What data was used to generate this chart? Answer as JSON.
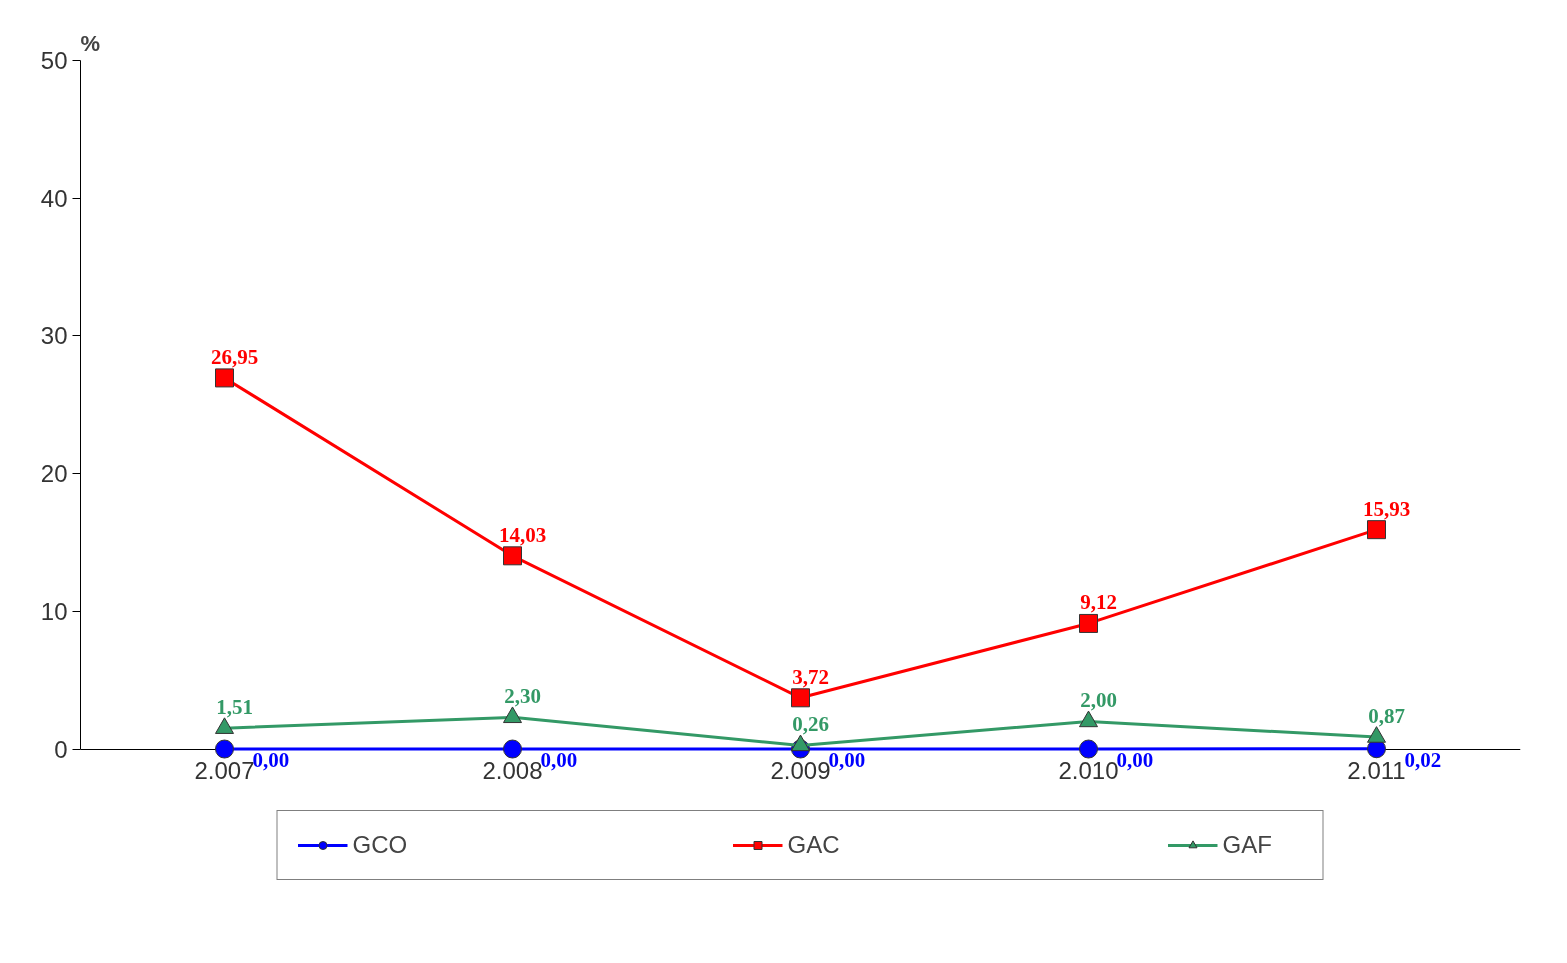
{
  "chart_data": {
    "type": "line",
    "ylabel": "%",
    "categories": [
      "2.007",
      "2.008",
      "2.009",
      "2.010",
      "2.011"
    ],
    "series": [
      {
        "name": "GCO",
        "color": "#0000ff",
        "marker": "circle",
        "values": [
          0.0,
          0.0,
          0.0,
          0.0,
          0.02
        ],
        "value_labels": [
          "0,00",
          "0,00",
          "0,00",
          "0,00",
          "0,02"
        ]
      },
      {
        "name": "GAC",
        "color": "#ff0000",
        "marker": "square",
        "values": [
          26.95,
          14.03,
          3.72,
          9.12,
          15.93
        ],
        "value_labels": [
          "26,95",
          "14,03",
          "3,72",
          "9,12",
          "15,93"
        ]
      },
      {
        "name": "GAF",
        "color": "#339966",
        "marker": "triangle",
        "values": [
          1.51,
          2.3,
          0.26,
          2.0,
          0.87
        ],
        "value_labels": [
          "1,51",
          "2,30",
          "0,26",
          "2,00",
          "0,87"
        ]
      }
    ],
    "ylim": [
      0,
      50
    ],
    "yticks": [
      0,
      10,
      20,
      30,
      40,
      50
    ],
    "grid": false,
    "legend": "bottom"
  }
}
